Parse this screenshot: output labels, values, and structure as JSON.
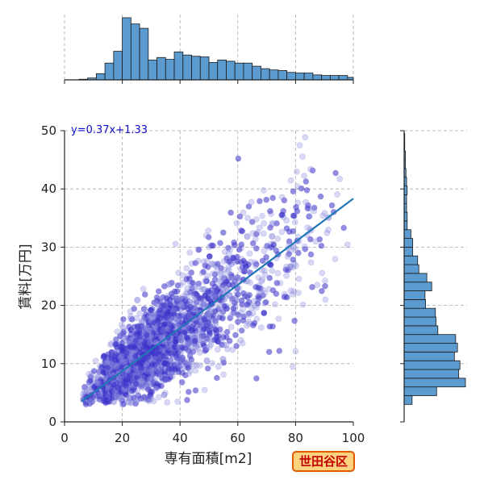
{
  "chart_data": {
    "type": "scatter",
    "xlabel": "専有面積[m2]",
    "ylabel": "賃料[万円]",
    "xlim": [
      0,
      100
    ],
    "ylim": [
      0,
      50
    ],
    "x_ticks": [
      0,
      20,
      40,
      60,
      80,
      100
    ],
    "y_ticks": [
      0,
      10,
      20,
      30,
      40,
      50
    ],
    "grid": true,
    "regression": {
      "label": "y=0.37x+1.33",
      "slope": 0.37,
      "intercept": 1.33,
      "x_range": [
        6,
        100
      ]
    },
    "point_cloud_summary": {
      "x_min": 6,
      "x_max": 100,
      "x_mode": 22,
      "y_min": 3,
      "y_max": 50
    },
    "marginal_x_histogram": {
      "bin_edges": [
        2,
        5,
        8,
        11,
        14,
        17,
        20,
        23,
        26,
        29,
        32,
        35,
        38,
        41,
        44,
        47,
        50,
        53,
        56,
        59,
        62,
        65,
        68,
        71,
        74,
        77,
        80,
        83,
        86,
        89,
        92,
        95,
        98,
        100
      ],
      "relative_counts": [
        0,
        1,
        3,
        10,
        27,
        46,
        100,
        90,
        83,
        32,
        36,
        33,
        45,
        40,
        38,
        37,
        28,
        32,
        30,
        27,
        27,
        22,
        18,
        16,
        15,
        12,
        11,
        11,
        8,
        7,
        7,
        7,
        4
      ]
    },
    "marginal_y_histogram": {
      "bin_edges": [
        3,
        4.5,
        6,
        7.5,
        9,
        10.5,
        12,
        13.5,
        15,
        16.5,
        18,
        19.5,
        21,
        22.5,
        24,
        25.5,
        27,
        28.5,
        30,
        31.5,
        33,
        34.5,
        36,
        37.5,
        39,
        40.5,
        42,
        43.5,
        45,
        46.5,
        48,
        49.5
      ],
      "relative_counts": [
        13,
        53,
        100,
        89,
        91,
        82,
        87,
        84,
        55,
        52,
        51,
        35,
        34,
        45,
        37,
        24,
        22,
        14,
        14,
        11,
        5,
        5,
        4,
        4,
        5,
        4,
        3,
        2,
        2,
        1,
        1
      ]
    }
  },
  "badge": {
    "label": "世田谷区"
  }
}
